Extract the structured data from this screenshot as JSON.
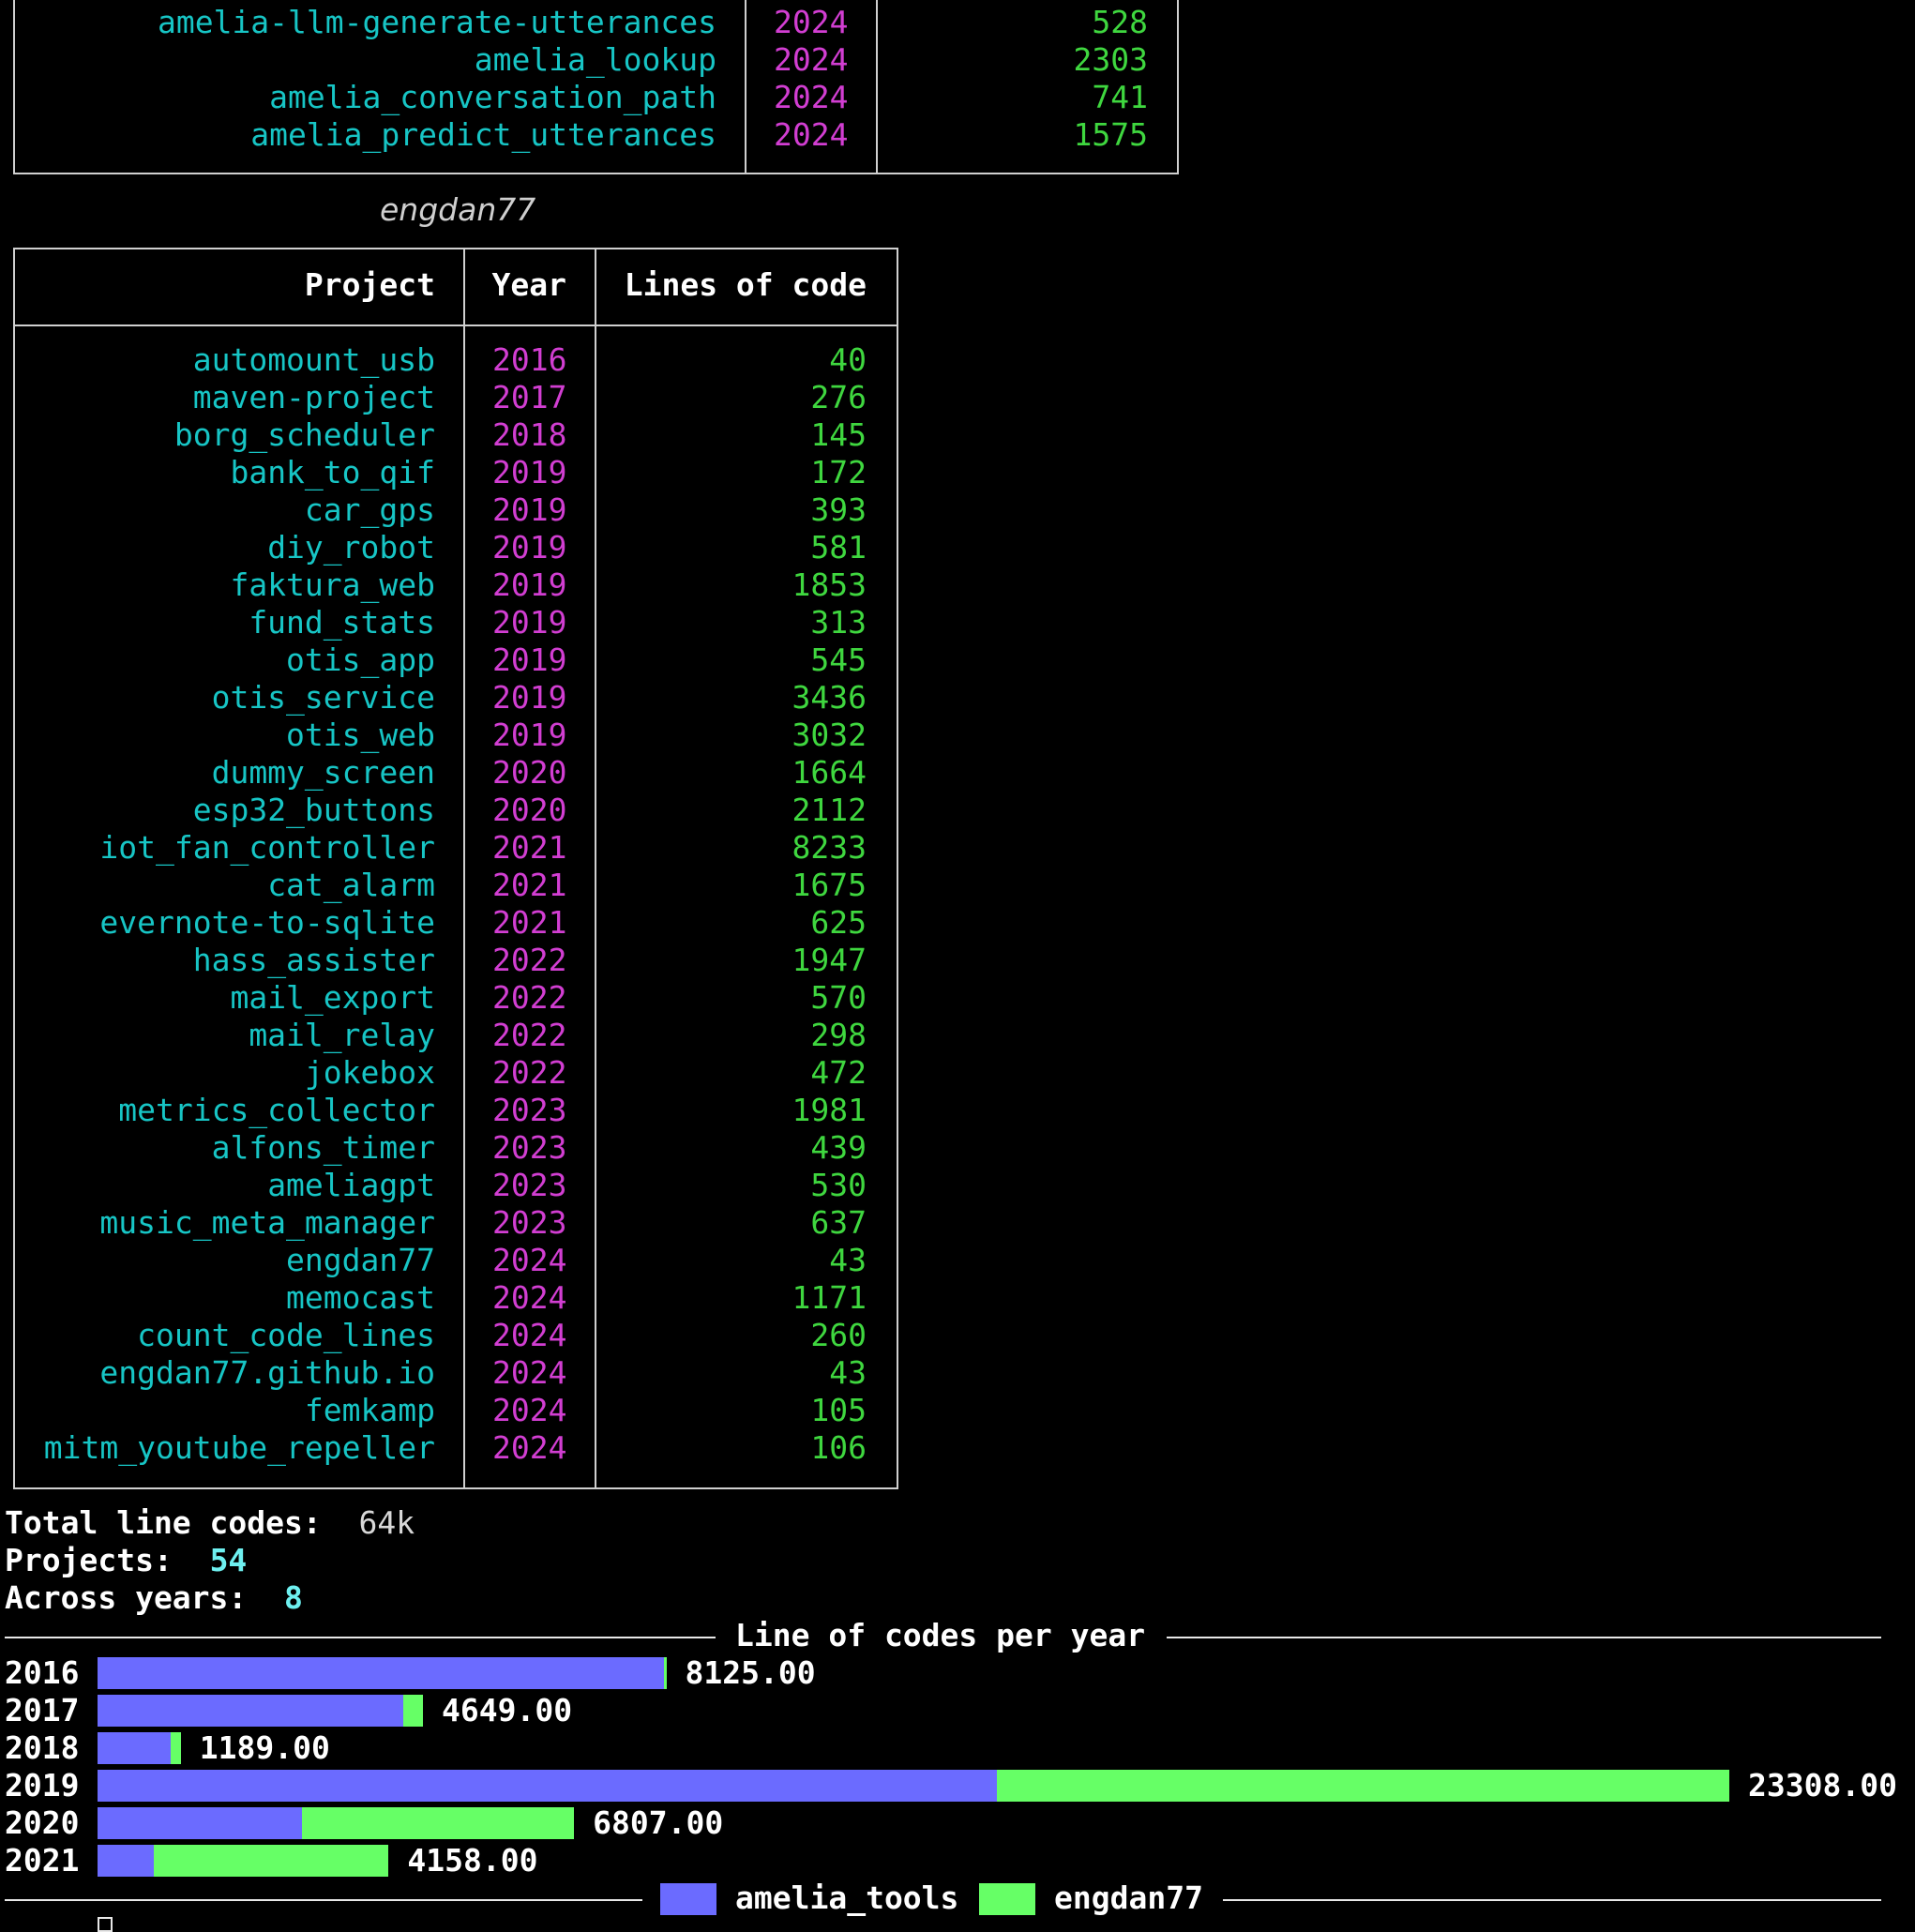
{
  "top_table": {
    "rows": [
      {
        "project": "amelia-llm-generate-utterances",
        "year": "2024",
        "loc": "528"
      },
      {
        "project": "amelia_lookup",
        "year": "2024",
        "loc": "2303"
      },
      {
        "project": "amelia_conversation_path",
        "year": "2024",
        "loc": "741"
      },
      {
        "project": "amelia_predict_utterances",
        "year": "2024",
        "loc": "1575"
      }
    ]
  },
  "engdan_table": {
    "caption": "engdan77",
    "headers": {
      "project": "Project",
      "year": "Year",
      "loc": "Lines of code"
    },
    "rows": [
      {
        "project": "automount_usb",
        "year": "2016",
        "loc": "40"
      },
      {
        "project": "maven-project",
        "year": "2017",
        "loc": "276"
      },
      {
        "project": "borg_scheduler",
        "year": "2018",
        "loc": "145"
      },
      {
        "project": "bank_to_qif",
        "year": "2019",
        "loc": "172"
      },
      {
        "project": "car_gps",
        "year": "2019",
        "loc": "393"
      },
      {
        "project": "diy_robot",
        "year": "2019",
        "loc": "581"
      },
      {
        "project": "faktura_web",
        "year": "2019",
        "loc": "1853"
      },
      {
        "project": "fund_stats",
        "year": "2019",
        "loc": "313"
      },
      {
        "project": "otis_app",
        "year": "2019",
        "loc": "545"
      },
      {
        "project": "otis_service",
        "year": "2019",
        "loc": "3436"
      },
      {
        "project": "otis_web",
        "year": "2019",
        "loc": "3032"
      },
      {
        "project": "dummy_screen",
        "year": "2020",
        "loc": "1664"
      },
      {
        "project": "esp32_buttons",
        "year": "2020",
        "loc": "2112"
      },
      {
        "project": "iot_fan_controller",
        "year": "2021",
        "loc": "8233"
      },
      {
        "project": "cat_alarm",
        "year": "2021",
        "loc": "1675"
      },
      {
        "project": "evernote-to-sqlite",
        "year": "2021",
        "loc": "625"
      },
      {
        "project": "hass_assister",
        "year": "2022",
        "loc": "1947"
      },
      {
        "project": "mail_export",
        "year": "2022",
        "loc": "570"
      },
      {
        "project": "mail_relay",
        "year": "2022",
        "loc": "298"
      },
      {
        "project": "jokebox",
        "year": "2022",
        "loc": "472"
      },
      {
        "project": "metrics_collector",
        "year": "2023",
        "loc": "1981"
      },
      {
        "project": "alfons_timer",
        "year": "2023",
        "loc": "439"
      },
      {
        "project": "ameliagpt",
        "year": "2023",
        "loc": "530"
      },
      {
        "project": "music_meta_manager",
        "year": "2023",
        "loc": "637"
      },
      {
        "project": "engdan77",
        "year": "2024",
        "loc": "43"
      },
      {
        "project": "memocast",
        "year": "2024",
        "loc": "1171"
      },
      {
        "project": "count_code_lines",
        "year": "2024",
        "loc": "260"
      },
      {
        "project": "engdan77.github.io",
        "year": "2024",
        "loc": "43"
      },
      {
        "project": "femkamp",
        "year": "2024",
        "loc": "105"
      },
      {
        "project": "mitm_youtube_repeller",
        "year": "2024",
        "loc": "106"
      }
    ]
  },
  "summary": {
    "total_label": "Total line codes:",
    "total_value": "64k",
    "projects_label": "Projects:",
    "projects_value": "54",
    "years_label": "Across years:",
    "years_value": "8"
  },
  "chart_data": {
    "type": "bar",
    "orientation": "horizontal",
    "stacked": true,
    "title": "Line of codes per year",
    "categories": [
      "2016",
      "2017",
      "2018",
      "2019",
      "2020",
      "2021"
    ],
    "series": [
      {
        "name": "amelia_tools",
        "color": "#6b6bff",
        "values": [
          8085,
          4373,
          1044,
          12841,
          2919,
          798
        ]
      },
      {
        "name": "engdan77",
        "color": "#66ff66",
        "values": [
          40,
          276,
          145,
          10467,
          3888,
          3360
        ]
      }
    ],
    "totals": [
      "8125.00",
      "4649.00",
      "1189.00",
      "23308.00",
      "6807.00",
      "4158.00"
    ],
    "legend_position": "bottom"
  }
}
